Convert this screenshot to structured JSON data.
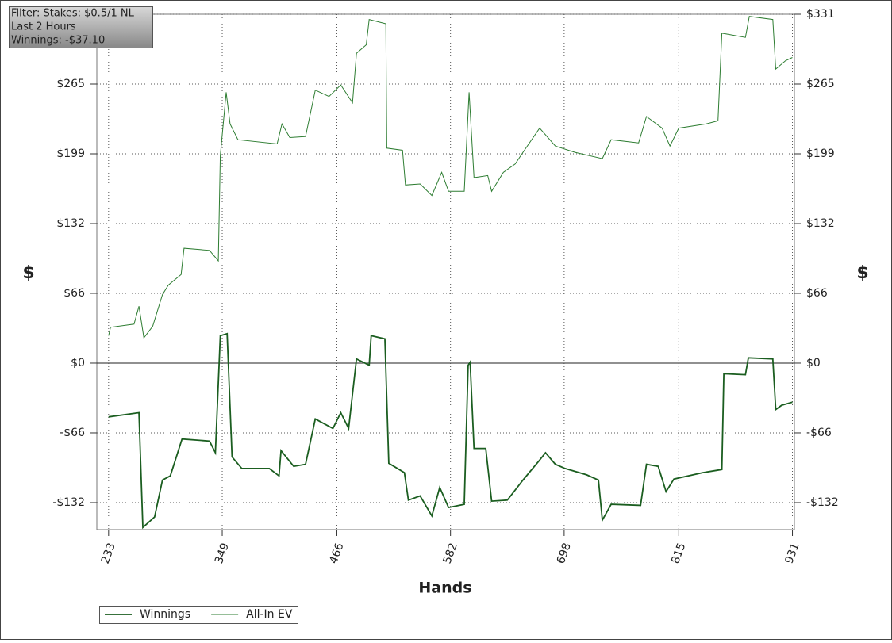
{
  "chart_data": {
    "type": "line",
    "info_box": [
      "Filter: Stakes: $0.5/1 NL",
      "Last 2 Hours",
      "Winnings: -$37.10"
    ],
    "xlabel": "Hands",
    "ylabel": "$",
    "y2label": "$",
    "xlim": [
      221,
      933
    ],
    "xticks": [
      233,
      349,
      466,
      582,
      698,
      815,
      931
    ],
    "ylim": [
      -158,
      331
    ],
    "yticks": [
      {
        "value": 331,
        "label": "$331"
      },
      {
        "value": 264.8,
        "label": "$265"
      },
      {
        "value": 198.6,
        "label": "$199"
      },
      {
        "value": 132.4,
        "label": "$132"
      },
      {
        "value": 66.2,
        "label": "$66"
      },
      {
        "value": 0,
        "label": "$0"
      },
      {
        "value": -66.2,
        "label": "-$66"
      },
      {
        "value": -132.4,
        "label": "-$132"
      }
    ],
    "y2lim": [
      -158,
      331
    ],
    "y2ticks": [
      {
        "value": 331,
        "label": "$331"
      },
      {
        "value": 264.8,
        "label": "$265"
      },
      {
        "value": 198.6,
        "label": "$199"
      },
      {
        "value": 132.4,
        "label": "$132"
      },
      {
        "value": 66.2,
        "label": "$66"
      },
      {
        "value": 0,
        "label": "$0"
      },
      {
        "value": -66.2,
        "label": "-$66"
      },
      {
        "value": -132.4,
        "label": "-$132"
      }
    ],
    "grid": true,
    "legend": "bottom-left",
    "series": [
      {
        "name": "Winnings",
        "color": "#1b5e20",
        "x": [
          233,
          264,
          268,
          280,
          288,
          296,
          308,
          336,
          342,
          347,
          354,
          359,
          369,
          397,
          407,
          409,
          422,
          434,
          444,
          462,
          470,
          478,
          486,
          499,
          501,
          515,
          519,
          535,
          539,
          551,
          563,
          571,
          580,
          596,
          600,
          602,
          606,
          618,
          624,
          640,
          656,
          673,
          679,
          689,
          699,
          721,
          733,
          737,
          746,
          776,
          782,
          794,
          802,
          810,
          839,
          859,
          861,
          883,
          886,
          911,
          914,
          920,
          931
        ],
        "values": [
          -51,
          -47,
          -156,
          -146,
          -111,
          -107,
          -72,
          -74,
          -85,
          26,
          28,
          -89,
          -100,
          -100,
          -107,
          -83,
          -98,
          -96,
          -53,
          -62,
          -47,
          -62,
          4,
          -2,
          26,
          23,
          -95,
          -104,
          -130,
          -126,
          -145,
          -118,
          -137,
          -134,
          -2,
          1,
          -81,
          -81,
          -131,
          -130,
          -111,
          -92,
          -85,
          -96,
          -100,
          -106,
          -111,
          -149,
          -134,
          -135,
          -96,
          -98,
          -122,
          -110,
          -104,
          -101,
          -10,
          -11,
          5,
          4,
          -44,
          -40,
          -37.1
        ]
      },
      {
        "name": "All-In EV",
        "color": "#2e7d32",
        "x": [
          233,
          235,
          259,
          264,
          269,
          278,
          288,
          294,
          307,
          310,
          336,
          345,
          347,
          353,
          357,
          365,
          405,
          410,
          418,
          434,
          444,
          458,
          470,
          482,
          486,
          496,
          499,
          516,
          517,
          533,
          536,
          551,
          563,
          573,
          580,
          596,
          601,
          606,
          620,
          624,
          636,
          648,
          656,
          673,
          689,
          709,
          737,
          746,
          774,
          782,
          798,
          806,
          815,
          843,
          855,
          859,
          883,
          887,
          911,
          914,
          924,
          931
        ],
        "values": [
          26,
          34,
          37,
          54,
          24,
          35,
          65,
          74,
          84,
          109,
          107,
          97,
          197,
          257,
          227,
          212,
          208,
          227,
          214,
          215,
          259,
          253,
          264,
          247,
          294,
          302,
          326,
          322,
          204,
          202,
          169,
          170,
          159,
          181,
          163,
          163,
          257,
          176,
          178,
          163,
          181,
          189,
          200,
          223,
          206,
          200,
          194,
          212,
          209,
          234,
          223,
          206,
          223,
          227,
          230,
          313,
          309,
          329,
          326,
          279,
          287,
          290
        ]
      }
    ]
  }
}
